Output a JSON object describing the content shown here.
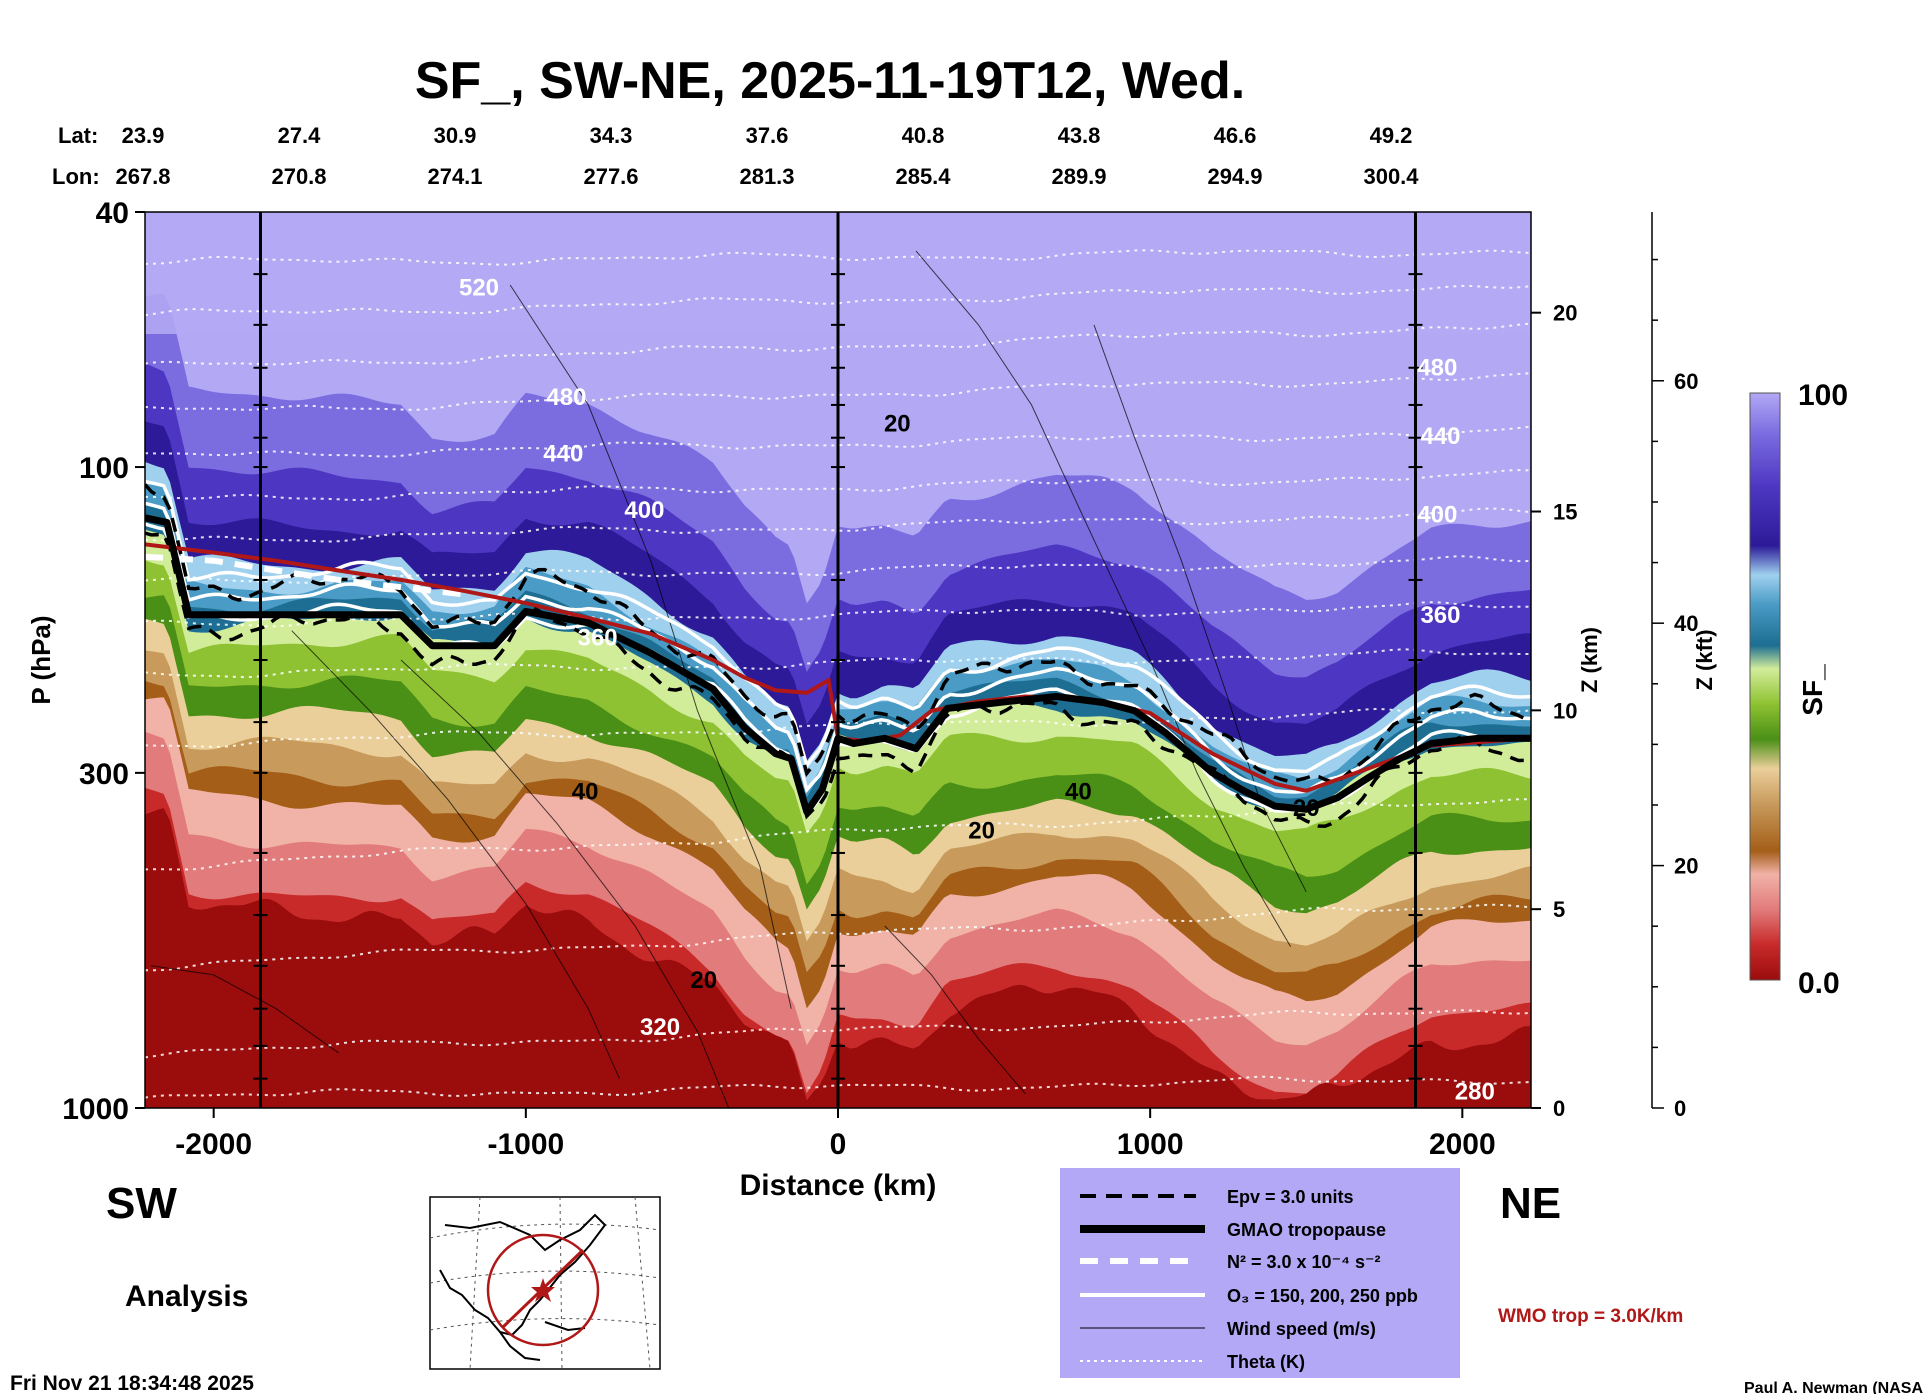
{
  "chart_data": {
    "type": "heatmap",
    "title": "SF_, SW-NE, 2025-11-19T12, Wed.",
    "xlabel": "Distance (km)",
    "ylabel": "P (hPa)",
    "y2label": "Z (km)",
    "y3label": "Z (kft)",
    "colorbar_label": "SF_",
    "colorbar_range": [
      0.0,
      100
    ],
    "colorbar_ticks": [
      "100",
      "0.0"
    ],
    "x_ticks": [
      -2000,
      -1000,
      0,
      1000,
      2000
    ],
    "x_tick_labels": [
      "-2000",
      "-1000",
      "0",
      "1000",
      "2000"
    ],
    "xlim": [
      -2220,
      2220
    ],
    "y_ticks_hpa": [
      40,
      100,
      300,
      1000
    ],
    "y_tick_labels": [
      "40",
      "100",
      "300",
      "1000"
    ],
    "ylim_hpa": [
      1000,
      40
    ],
    "z_km_ticks": [
      0,
      5,
      10,
      15,
      20
    ],
    "z_km_labels": [
      "0",
      "5",
      "10",
      "15",
      "20"
    ],
    "z_kft_ticks": [
      0,
      20,
      40,
      60
    ],
    "z_kft_labels": [
      "0",
      "20",
      "40",
      "60"
    ],
    "lat_label": "Lat:",
    "lon_label": "Lon:",
    "lats": [
      "23.9",
      "27.4",
      "30.9",
      "34.3",
      "37.6",
      "40.8",
      "43.8",
      "46.6",
      "49.2"
    ],
    "lons": [
      "267.8",
      "270.8",
      "274.1",
      "277.6",
      "281.3",
      "285.4",
      "289.9",
      "294.9",
      "300.4"
    ],
    "vertical_markers_km": [
      -1850,
      0,
      1850
    ],
    "theta_label_values": [
      "520",
      "480",
      "440",
      "400",
      "360",
      "320",
      "280"
    ],
    "wind_label_values": [
      "20",
      "40"
    ],
    "surfaces": {
      "tropopause_hpa": [
        [
          -2220,
          120
        ],
        [
          -2150,
          122
        ],
        [
          -2080,
          170
        ],
        [
          -2000,
          170
        ],
        [
          -1700,
          170
        ],
        [
          -1400,
          170
        ],
        [
          -1300,
          190
        ],
        [
          -1200,
          190
        ],
        [
          -1100,
          190
        ],
        [
          -1000,
          168
        ],
        [
          -800,
          175
        ],
        [
          -600,
          195
        ],
        [
          -400,
          222
        ],
        [
          -300,
          255
        ],
        [
          -200,
          280
        ],
        [
          -150,
          285
        ],
        [
          -100,
          345
        ],
        [
          -50,
          318
        ],
        [
          0,
          265
        ],
        [
          50,
          270
        ],
        [
          150,
          265
        ],
        [
          250,
          275
        ],
        [
          350,
          238
        ],
        [
          450,
          235
        ],
        [
          550,
          232
        ],
        [
          700,
          228
        ],
        [
          850,
          233
        ],
        [
          950,
          240
        ],
        [
          1050,
          260
        ],
        [
          1200,
          300
        ],
        [
          1300,
          320
        ],
        [
          1400,
          338
        ],
        [
          1500,
          342
        ],
        [
          1600,
          328
        ],
        [
          1700,
          305
        ],
        [
          1800,
          285
        ],
        [
          1900,
          270
        ],
        [
          2050,
          265
        ],
        [
          2220,
          265
        ]
      ],
      "wmo_hpa": [
        [
          -2220,
          132
        ],
        [
          -2000,
          136
        ],
        [
          -1800,
          140
        ],
        [
          -1600,
          145
        ],
        [
          -1400,
          150
        ],
        [
          -1200,
          156
        ],
        [
          -1000,
          163
        ],
        [
          -800,
          172
        ],
        [
          -600,
          182
        ],
        [
          -400,
          200
        ],
        [
          -300,
          213
        ],
        [
          -200,
          223
        ],
        [
          -100,
          225
        ],
        [
          -30,
          215
        ],
        [
          0,
          265
        ],
        [
          100,
          268
        ],
        [
          200,
          262
        ],
        [
          300,
          240
        ],
        [
          450,
          232
        ],
        [
          600,
          228
        ],
        [
          800,
          230
        ],
        [
          1000,
          242
        ],
        [
          1200,
          280
        ],
        [
          1400,
          312
        ],
        [
          1500,
          320
        ],
        [
          1700,
          295
        ],
        [
          1900,
          272
        ],
        [
          2220,
          265
        ]
      ],
      "n2_hpa": [
        [
          -2220,
          138
        ],
        [
          -2000,
          140
        ],
        [
          -1800,
          145
        ],
        [
          -1600,
          150
        ],
        [
          -1400,
          154
        ],
        [
          -1200,
          158
        ]
      ]
    },
    "legend": {
      "entries": [
        {
          "label": "Epv = 3.0 units",
          "style": "dashed"
        },
        {
          "label": "GMAO tropopause",
          "style": "thick"
        },
        {
          "label": "N² = 3.0 x 10⁻⁴ s⁻²",
          "style": "white-dashed"
        },
        {
          "label": "O₃ = 150, 200, 250 ppb",
          "style": "white"
        },
        {
          "label": "Wind speed (m/s)",
          "style": "thin"
        },
        {
          "label": "Theta (K)",
          "style": "dotted"
        }
      ],
      "placement": "bottom-center"
    },
    "annotations": {
      "left_direction": "SW",
      "right_direction": "NE",
      "analysis": "Analysis",
      "wmo_note": "WMO trop = 3.0K/km",
      "timestamp": "Fri Nov 21 18:34:48 2025",
      "credit": "Paul A. Newman (NASA"
    }
  },
  "colors": {
    "wmo": "#b01818",
    "legend_bg": "#b3a8f5",
    "colorbar_stops": [
      "#9b0c0c",
      "#c82a2a",
      "#e27b7b",
      "#f1b2a8",
      "#a45e18",
      "#c89a5c",
      "#ebcf9a",
      "#4a8f16",
      "#8ec232",
      "#d2ed9a",
      "#1d6e92",
      "#4a9bc6",
      "#9fd0ee",
      "#2c1a99",
      "#4d37c2",
      "#7b6ce0",
      "#b2a8f4"
    ]
  }
}
